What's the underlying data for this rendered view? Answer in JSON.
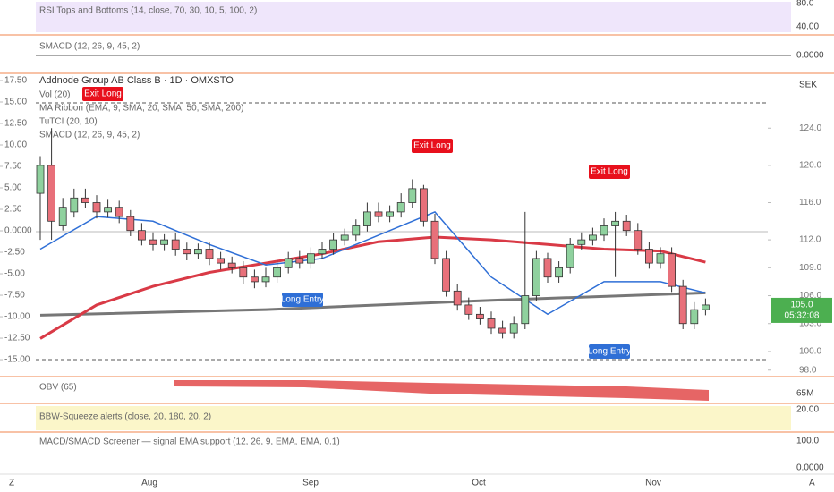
{
  "chart_data": {
    "type": "candlestick",
    "title": "Addnode Group AB Class B · 1D · OMXSTO",
    "legend_items": [
      "Vol (20)",
      "MA Ribbon (EMA, 9, SMA, 20, SMA, 50, SMA, 200)",
      "TuTCI (20, 10)",
      "SMACD (12, 26, 9, 45, 2)"
    ],
    "currency": "SEK",
    "x_axis_labels": [
      "Aug",
      "Sep",
      "Oct",
      "Nov"
    ],
    "open": [
      117,
      120,
      113.5,
      115,
      116.5,
      116,
      115,
      115.5,
      114.5,
      113,
      112,
      111.5,
      112,
      111,
      110.5,
      111,
      110,
      109.5,
      109,
      108,
      107.5,
      108,
      109,
      110,
      109.5,
      110.5,
      111,
      112,
      112.5,
      113.5,
      115,
      114.5,
      115,
      116,
      117.5,
      114,
      110,
      106.5,
      105,
      104,
      103.5,
      102.5,
      102,
      103,
      106,
      110,
      108,
      109,
      111.5,
      112,
      112.5,
      113.5,
      114,
      113,
      111,
      109.5,
      110.5,
      107,
      103,
      104.5
    ],
    "high": [
      121,
      124,
      116.5,
      117.5,
      117.5,
      116.8,
      116.3,
      116.2,
      115.2,
      113.8,
      112.8,
      112.6,
      112.7,
      111.7,
      111.6,
      111.7,
      110.7,
      110.2,
      109.7,
      108.8,
      109,
      109.8,
      110.7,
      110.8,
      111.2,
      111.8,
      112.7,
      113.2,
      114.2,
      116,
      116,
      115.7,
      117,
      118.5,
      117.9,
      114.8,
      110.8,
      107.3,
      105.8,
      104.8,
      104.3,
      103.3,
      103.8,
      115,
      110.8,
      110.6,
      109.7,
      112.2,
      112.8,
      113.3,
      114.3,
      115,
      114.7,
      113.8,
      111.8,
      111.2,
      111.2,
      107.7,
      105.3,
      105.7
    ],
    "low": [
      112,
      112,
      113,
      114.4,
      115.4,
      114.3,
      114.4,
      113.8,
      112.4,
      111.4,
      110.8,
      110.8,
      110.3,
      109.8,
      109.9,
      109.3,
      108.8,
      108.4,
      107.3,
      106.8,
      106.9,
      107.4,
      108.4,
      108.9,
      108.9,
      109.9,
      110.4,
      111.4,
      111.9,
      112.9,
      113.9,
      113.9,
      114.4,
      115.4,
      113.4,
      109.4,
      105.9,
      104.4,
      103.4,
      102.9,
      101.9,
      101.4,
      101.4,
      102.4,
      105.4,
      107.4,
      107.4,
      108.4,
      110.9,
      111.4,
      111.9,
      108,
      112.4,
      110.4,
      108.9,
      108.9,
      106.4,
      102.4,
      102.4,
      103.9
    ],
    "close": [
      120,
      114,
      115.5,
      116.5,
      116,
      115,
      115.5,
      114.5,
      113,
      112,
      111.5,
      112,
      111,
      110.5,
      111,
      110,
      109.5,
      109,
      108,
      107.5,
      108,
      109,
      110,
      109.5,
      110.5,
      111,
      112,
      112.5,
      113.5,
      115,
      114.5,
      115,
      116,
      117.5,
      114,
      110,
      106.5,
      105,
      104,
      103.5,
      102.5,
      102,
      103,
      106,
      110,
      108,
      109,
      111.5,
      112,
      112.5,
      113.5,
      114,
      113,
      111,
      109.5,
      110.5,
      107,
      103,
      104.5,
      105
    ],
    "up_color": "#8fd19e",
    "down_color": "#e8707a",
    "series": [
      {
        "name": "SMA 200",
        "color": "#777777",
        "x": [
          0,
          20,
          40,
          59
        ],
        "values": [
          103.9,
          104.5,
          105.5,
          106.3
        ]
      },
      {
        "name": "SMA 50",
        "color": "#d93a46",
        "x": [
          0,
          5,
          10,
          15,
          20,
          25,
          30,
          35,
          40,
          45,
          50,
          55,
          59
        ],
        "values": [
          101.4,
          105,
          107,
          108.5,
          109.5,
          110.5,
          111.8,
          112.3,
          112,
          111.5,
          111,
          110.8,
          109.6
        ]
      },
      {
        "name": "SMA 20",
        "color": "#2f6fd6",
        "x": [
          0,
          5,
          10,
          15,
          20,
          25,
          30,
          35,
          40,
          45,
          50,
          55,
          59
        ],
        "values": [
          111,
          114.5,
          114,
          111.5,
          109.3,
          110,
          112.5,
          115,
          108,
          104,
          107.5,
          107.5,
          106.3
        ]
      }
    ],
    "annotations": [
      "Exit Long",
      "Exit Long",
      "Exit Long",
      "Long Entry",
      "Long Entry"
    ],
    "last_price_label": "105.0",
    "countdown": "05:32:08",
    "ylim": [
      97.4,
      129.6
    ],
    "yticks": [
      {
        "value": 124,
        "label": "124.0"
      },
      {
        "value": 120,
        "label": "120.0"
      },
      {
        "value": 116,
        "label": "116.0"
      },
      {
        "value": 112,
        "label": "112.0"
      },
      {
        "value": 109,
        "label": "109.0"
      },
      {
        "value": 106,
        "label": "106.0"
      },
      {
        "value": 103,
        "label": "103.0"
      },
      {
        "value": 100,
        "label": "100.0"
      },
      {
        "value": 98,
        "label": "98.0"
      }
    ],
    "y2lim": [
      -16.87,
      18.02
    ],
    "y2ticks": [
      {
        "value": 17.5,
        "label": "17.50"
      },
      {
        "value": 15,
        "label": "15.00"
      },
      {
        "value": 12.5,
        "label": "12.50"
      },
      {
        "value": 10,
        "label": "10.00"
      },
      {
        "value": 7.5,
        "label": "7.50"
      },
      {
        "value": 5,
        "label": "5.00"
      },
      {
        "value": 2.5,
        "label": "2.50"
      },
      {
        "value": 0,
        "label": "0.0000"
      },
      {
        "value": -2.5,
        "label": "-2.50"
      },
      {
        "value": -5,
        "label": "-5.00"
      },
      {
        "value": -7.5,
        "label": "-7.50"
      },
      {
        "value": -10,
        "label": "-10.00"
      },
      {
        "value": -12.5,
        "label": "-12.50"
      },
      {
        "value": -15,
        "label": "-15.00"
      }
    ]
  },
  "panels": [
    {
      "label": "RSI Tops and Bottoms (14, close, 70, 30, 10, 5, 100, 2)",
      "axis_labels": [
        "80.0",
        "40.00"
      ]
    },
    {
      "label": "SMACD (12, 26, 9, 45, 2)",
      "axis_labels": [
        "0.0000"
      ]
    },
    {
      "label": "OBV (65)",
      "axis_labels": [
        "65M"
      ]
    },
    {
      "label": "BBW-Squeeze alerts (close, 20, 180, 20, 2)",
      "axis_labels": [
        "20.00"
      ]
    },
    {
      "label": "MACD/SMACD Screener — signal EMA support (12, 26, 9, EMA, EMA, 0.1)",
      "axis_labels": [
        "100.0",
        "0.0000"
      ]
    }
  ],
  "corners": [
    "Z",
    "A"
  ]
}
